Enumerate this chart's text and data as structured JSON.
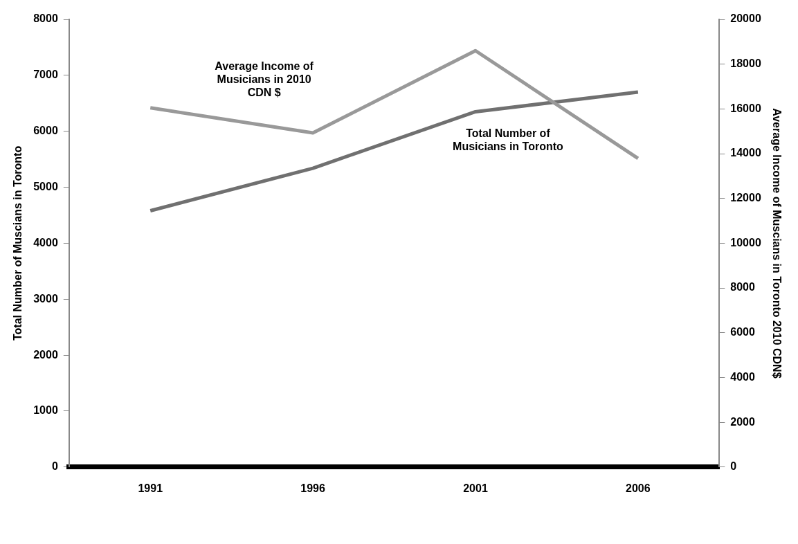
{
  "chart_data": {
    "type": "line",
    "categories": [
      "1991",
      "1996",
      "2001",
      "2006"
    ],
    "series": [
      {
        "name": "Average Income of Musicians in 2010 CDN $",
        "color": "#999999",
        "values": [
          16050,
          14930,
          18600,
          13790
        ],
        "axis": "y2"
      },
      {
        "name": "Total Number of Musicians in Toronto",
        "color": "#707070",
        "values": [
          4580,
          5340,
          6350,
          6700
        ]
      }
    ],
    "ylabel": "Total Number of Muscians in Toronto",
    "y2label": "Average Income of Muscians in Toronto 2010 CDN$",
    "ylim": [
      0,
      8000
    ],
    "yticks": [
      0,
      1000,
      2000,
      3000,
      4000,
      5000,
      6000,
      7000,
      8000
    ],
    "y2lim": [
      0,
      20000
    ],
    "y2ticks": [
      0,
      2000,
      4000,
      6000,
      8000,
      10000,
      12000,
      14000,
      16000,
      18000,
      20000
    ],
    "grid": false,
    "legend": false,
    "marker": "none",
    "line_style": "solid"
  }
}
